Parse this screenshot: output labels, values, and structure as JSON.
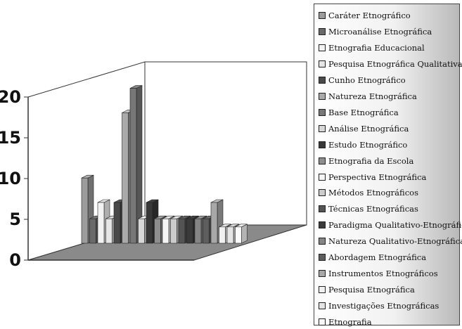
{
  "chart_data": {
    "type": "bar",
    "subtype": "3d-clustered-column",
    "ylim": [
      0,
      20
    ],
    "yticks": [
      0,
      5,
      10,
      15,
      20
    ],
    "legend_position": "right",
    "series": [
      {
        "name": "Caráter Etnográfico",
        "value": 8,
        "color": "#9c9c9c"
      },
      {
        "name": "Microanálise Etnográfica",
        "value": 3,
        "color": "#6a6a6a"
      },
      {
        "name": "Etnografia Educacional",
        "value": 5,
        "color": "#f2f2f2"
      },
      {
        "name": "Pesquisa Etnográfica Qualitativa",
        "value": 3,
        "color": "#e6e6e6"
      },
      {
        "name": "Cunho Etnográfico",
        "value": 5,
        "color": "#4a4a4a"
      },
      {
        "name": "Natureza Etnográfica",
        "value": 16,
        "color": "#aaaaaa"
      },
      {
        "name": "Base Etnográfica",
        "value": 19,
        "color": "#777777"
      },
      {
        "name": "Análise Etnográfica",
        "value": 3,
        "color": "#d8d8d8"
      },
      {
        "name": "Estudo Etnográfico",
        "value": 5,
        "color": "#383838"
      },
      {
        "name": "Etnografia da Escola",
        "value": 3,
        "color": "#8e8e8e"
      },
      {
        "name": "Perspectiva Etnográfica",
        "value": 3,
        "color": "#f5f5f5"
      },
      {
        "name": "Métodos Etnográficos",
        "value": 3,
        "color": "#cccccc"
      },
      {
        "name": "Técnicas Etnográficas",
        "value": 3,
        "color": "#545454"
      },
      {
        "name": "Paradigma Qualitativo-Etnográfico",
        "value": 3,
        "color": "#3a3a3a"
      },
      {
        "name": "Natureza Qualitativo-Etnográfica",
        "value": 3,
        "color": "#858585"
      },
      {
        "name": "Abordagem Etnográfica",
        "value": 3,
        "color": "#5e5e5e"
      },
      {
        "name": "Instrumentos Etnográficos",
        "value": 5,
        "color": "#a8a8a8"
      },
      {
        "name": "Pesquisa Etnográfica",
        "value": 2,
        "color": "#f0f0f0"
      },
      {
        "name": "Investigações Etnográficas",
        "value": 2,
        "color": "#e4e4e4"
      },
      {
        "name": "Etnografia",
        "value": 2,
        "color": "#fafafa"
      }
    ]
  }
}
